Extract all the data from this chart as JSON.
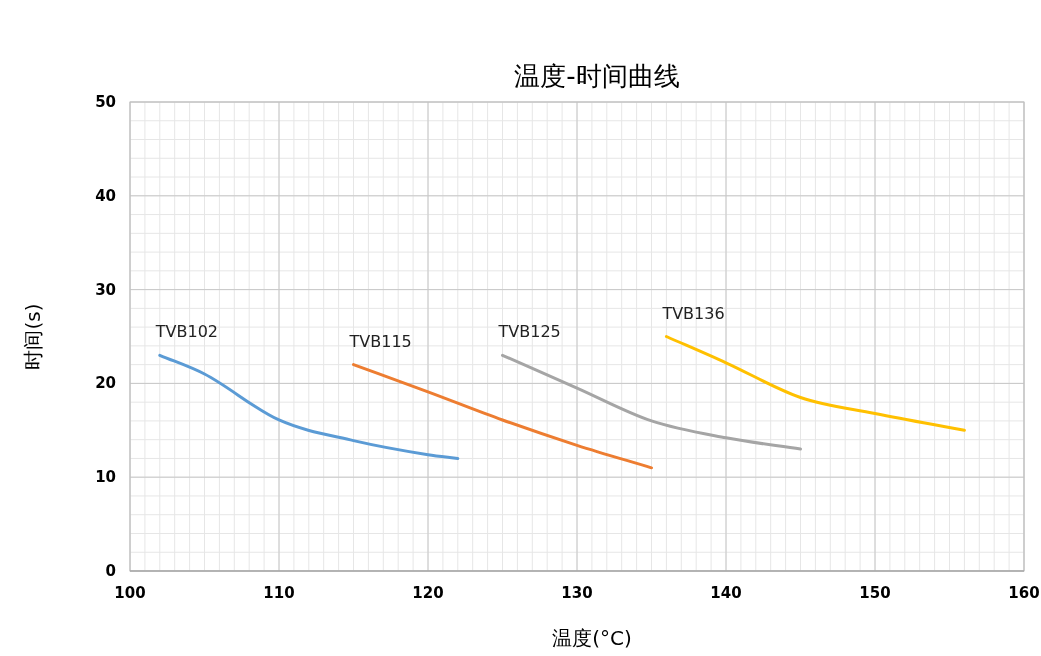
{
  "chart_data": {
    "type": "line",
    "title": "温度-时间曲线",
    "xlabel": "温度(°C)",
    "ylabel": "时间(s)",
    "xlim": [
      100,
      160
    ],
    "xticks": [
      100,
      110,
      120,
      130,
      140,
      150,
      160
    ],
    "ylim": [
      0,
      50
    ],
    "yticks": [
      0,
      10,
      20,
      30,
      40,
      50
    ],
    "grid": true,
    "series": [
      {
        "name": "TVB102",
        "color": "#5b9bd5",
        "x": [
          102,
          105,
          110,
          115,
          120,
          122
        ],
        "values": [
          23,
          21,
          16.1,
          13.9,
          12.4,
          12
        ]
      },
      {
        "name": "TVB115",
        "color": "#ed7d31",
        "x": [
          115,
          120,
          125,
          130,
          135
        ],
        "values": [
          22,
          19.1,
          16.1,
          13.4,
          11
        ]
      },
      {
        "name": "TVB125",
        "color": "#a5a5a5",
        "x": [
          125,
          130,
          135,
          140,
          145
        ],
        "values": [
          23,
          19.5,
          16,
          14.2,
          13
        ]
      },
      {
        "name": "TVB136",
        "color": "#ffc000",
        "x": [
          136,
          140,
          145,
          150,
          156
        ],
        "values": [
          25,
          22.2,
          18.5,
          16.8,
          15
        ]
      }
    ]
  }
}
